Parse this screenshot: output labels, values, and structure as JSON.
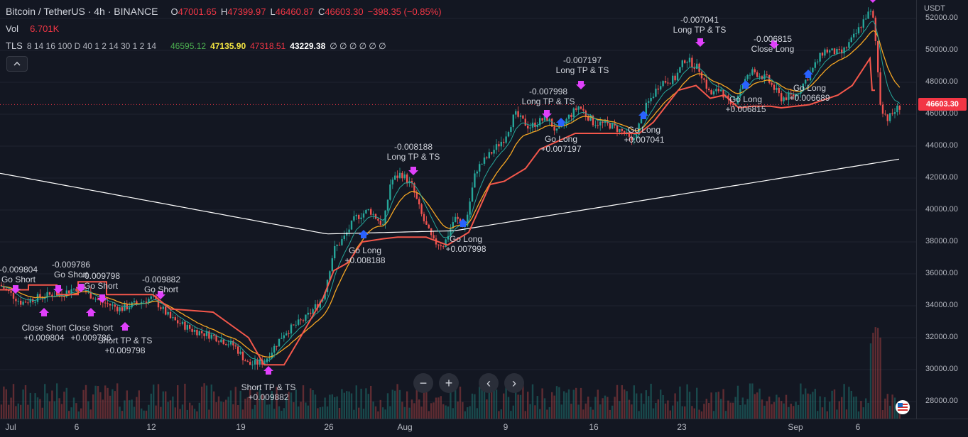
{
  "legend": {
    "symbol": "Bitcoin / TetherUS · 4h · BINANCE",
    "o_label": "O",
    "o": "47001.65",
    "h_label": "H",
    "h": "47399.97",
    "l_label": "L",
    "l": "46460.87",
    "c_label": "C",
    "c": "46603.30",
    "change": "−398.35 (−0.85%)",
    "vol_label": "Vol",
    "vol": "6.701K",
    "tls_label": "TLS",
    "tls_params": "8 14 16 100 D 40 1 2 14 30 1 2 14",
    "tls_v1": "46595.12",
    "tls_v2": "47135.90",
    "tls_v3": "47318.51",
    "tls_v4": "43229.38",
    "tls_rest": "∅ ∅ ∅ ∅ ∅ ∅",
    "colors": {
      "v1": "#4caf50",
      "v2": "#f5e642",
      "v3": "#f23645",
      "v4": "#ffffff"
    }
  },
  "collapse_icon": "chevron-up-icon",
  "price_axis": {
    "unit": "USDT",
    "ticks": [
      "52000.00",
      "50000.00",
      "48000.00",
      "46000.00",
      "44000.00",
      "42000.00",
      "40000.00",
      "38000.00",
      "36000.00",
      "34000.00",
      "32000.00",
      "30000.00",
      "28000.00"
    ],
    "current_price": "46603.30"
  },
  "time_axis": {
    "ticks": [
      "Jul",
      "6",
      "12",
      "19",
      "26",
      "Aug",
      "9",
      "16",
      "23",
      "Sep",
      "6"
    ]
  },
  "nav": {
    "zoom_out": "−",
    "zoom_in": "+",
    "scroll_left": "‹",
    "scroll_right": "›"
  },
  "signals": [
    {
      "line1": "-0.009804",
      "line2": "Go Short"
    },
    {
      "line1": "-0.009786",
      "line2": "Go Short"
    },
    {
      "line1": "-0.009798",
      "line2": "Go Short"
    },
    {
      "line1": "-0.009882",
      "line2": "Go Short"
    },
    {
      "line1": "Close Short",
      "line2": "+0.009804"
    },
    {
      "line1": "Close Short",
      "line2": "+0.009786"
    },
    {
      "line1": "Short TP & TS",
      "line2": "+0.009798"
    },
    {
      "line1": "Short TP & TS",
      "line2": "+0.009882"
    },
    {
      "line1": "Go Long",
      "line2": "+0.008188"
    },
    {
      "line1": "-0.008188",
      "line2": "Long TP & TS"
    },
    {
      "line1": "Go Long",
      "line2": "+0.007998"
    },
    {
      "line1": "-0.007998",
      "line2": "Long TP & TS"
    },
    {
      "line1": "Go Long",
      "line2": "+0.007197"
    },
    {
      "line1": "-0.007197",
      "line2": "Long TP & TS"
    },
    {
      "line1": "Go Long",
      "line2": "+0.007041"
    },
    {
      "line1": "-0.007041",
      "line2": "Long TP & TS"
    },
    {
      "line1": "Go Long",
      "line2": "+0.006815"
    },
    {
      "line1": "-0.006815",
      "line2": "Close Long"
    },
    {
      "line1": "Go Long",
      "line2": "+0.006689"
    }
  ],
  "colors": {
    "background": "#131722",
    "up": "#26a69a",
    "down": "#ef5350",
    "trail": "#f4574b",
    "ema_fast": "#26a69a",
    "ema_slow": "#f5a623",
    "sma_long": "#ffffff",
    "signal": "#e040fb",
    "long_arrow": "#2962ff"
  }
}
